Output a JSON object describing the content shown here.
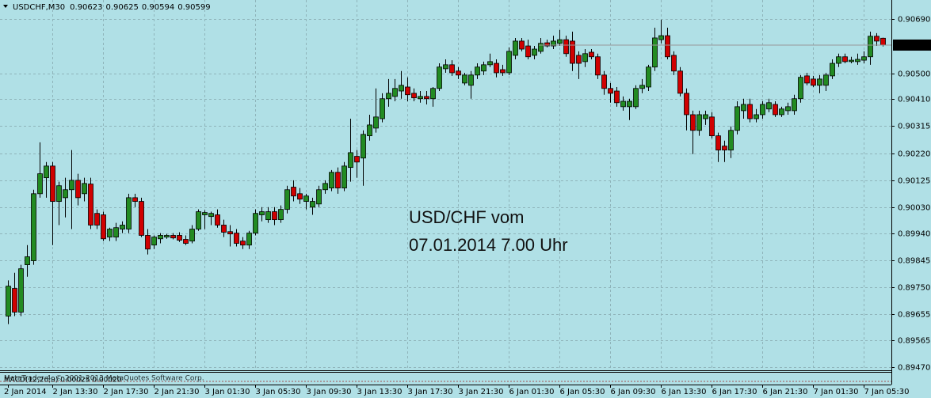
{
  "chart_data": {
    "type": "candlestick",
    "title": "USDCHF,M30",
    "annotations": [
      "USD/CHF vom",
      "07.01.2014 7.00 Uhr"
    ],
    "indicator": "MACD(12,26,9) 0.00025 0.00020",
    "watermark": "MetaTrader 4, © 2001-2013 MetaQuotes Software Corp.",
    "up_color": "#228b22",
    "down_color": "#d00000",
    "grid": true,
    "ylim": [
      0.89459,
      0.90757
    ],
    "yticks": [
      {
        "value": 0.9069,
        "label": "0.90690"
      },
      {
        "value": 0.905,
        "label": "0.90500"
      },
      {
        "value": 0.9041,
        "label": "0.90410"
      },
      0.90315,
      {
        "value": 0.9022,
        "label": "0.90220"
      },
      0.90125,
      {
        "value": 0.9003,
        "label": "0.90030"
      },
      {
        "value": 0.8994,
        "label": "0.89940"
      },
      0.89845,
      {
        "value": 0.8975,
        "label": "0.89750"
      },
      0.89655,
      0.89565,
      {
        "value": 0.8947,
        "label": "0.89470"
      }
    ],
    "categories": [
      "2 Jan 2014",
      null,
      null,
      null,
      null,
      null,
      null,
      "2 Jan 13:30",
      null,
      null,
      null,
      null,
      null,
      null,
      null,
      "2 Jan 17:30",
      null,
      null,
      null,
      null,
      null,
      null,
      null,
      "2 Jan 21:30",
      null,
      null,
      null,
      null,
      null,
      null,
      null,
      "3 Jan 01:30",
      null,
      null,
      null,
      null,
      null,
      null,
      null,
      "3 Jan 05:30",
      null,
      null,
      null,
      null,
      null,
      null,
      null,
      "3 Jan 09:30",
      null,
      null,
      null,
      null,
      null,
      null,
      null,
      "3 Jan 13:30",
      null,
      null,
      null,
      null,
      null,
      null,
      null,
      "3 Jan 17:30",
      null,
      null,
      null,
      null,
      null,
      null,
      null,
      "3 Jan 21:30",
      null,
      null,
      null,
      null,
      null,
      null,
      null,
      "6 Jan 01:30",
      null,
      null,
      null,
      null,
      null,
      null,
      null,
      "6 Jan 05:30",
      null,
      null,
      null,
      null,
      null,
      null,
      null,
      "6 Jan 09:30",
      null,
      null,
      null,
      null,
      null,
      null,
      null,
      "6 Jan 13:30",
      null,
      null,
      null,
      null,
      null,
      null,
      null,
      "6 Jan 17:30",
      null,
      null,
      null,
      null,
      null,
      null,
      null,
      "6 Jan 21:30",
      null,
      null,
      null,
      null,
      null,
      null,
      null,
      "7 Jan 01:30",
      null,
      null,
      null,
      null,
      null,
      null,
      null,
      "7 Jan 05:30",
      null,
      null,
      null
    ],
    "ohlc": [
      [
        0.89649,
        0.89774,
        0.89621,
        0.89754
      ],
      [
        0.89746,
        0.89801,
        0.89649,
        0.89663
      ],
      [
        0.89663,
        0.89829,
        0.89649,
        0.89815
      ],
      [
        0.89829,
        0.89898,
        0.89787,
        0.89857
      ],
      [
        0.89843,
        0.90092,
        0.89829,
        0.90078
      ],
      [
        0.90078,
        0.90258,
        0.90064,
        0.90148
      ],
      [
        0.90134,
        0.90189,
        0.90064,
        0.90175
      ],
      [
        0.90175,
        0.90189,
        0.89898,
        0.90051
      ],
      [
        0.90051,
        0.9012,
        0.89968,
        0.90106
      ],
      [
        0.90064,
        0.90134,
        0.89995,
        0.90092
      ],
      [
        0.90092,
        0.90231,
        0.89954,
        0.90125
      ],
      [
        0.90125,
        0.90148,
        0.90037,
        0.90064
      ],
      [
        0.90078,
        0.90134,
        0.90051,
        0.90114
      ],
      [
        0.90112,
        0.90134,
        0.89954,
        0.89968
      ],
      [
        0.90009,
        0.90023,
        0.89954,
        0.89968
      ],
      [
        0.90004,
        0.90015,
        0.89912,
        0.8992
      ],
      [
        0.89926,
        0.89959,
        0.89912,
        0.89954
      ],
      [
        0.89926,
        0.89976,
        0.89912,
        0.89959
      ],
      [
        0.89954,
        0.89981,
        0.8994,
        0.89968
      ],
      [
        0.89954,
        0.90078,
        0.8994,
        0.90064
      ],
      [
        0.90064,
        0.90078,
        0.90031,
        0.90051
      ],
      [
        0.90051,
        0.90064,
        0.89926,
        0.89932
      ],
      [
        0.89932,
        0.89954,
        0.89865,
        0.89884
      ],
      [
        0.89898,
        0.89932,
        0.89884,
        0.89926
      ],
      [
        0.8992,
        0.8994,
        0.89904,
        0.89932
      ],
      [
        0.89926,
        0.89937,
        0.8992,
        0.89932
      ],
      [
        0.89932,
        0.8994,
        0.89918,
        0.89923
      ],
      [
        0.89932,
        0.89943,
        0.89909,
        0.89915
      ],
      [
        0.89918,
        0.89932,
        0.89898,
        0.89904
      ],
      [
        0.89912,
        0.89968,
        0.89904,
        0.89954
      ],
      [
        0.89954,
        0.90023,
        0.89948,
        0.90015
      ],
      [
        0.90004,
        0.9002,
        0.89954,
        0.90012
      ],
      [
        0.89998,
        0.90015,
        0.89968,
        0.90009
      ],
      [
        0.90004,
        0.90023,
        0.89959,
        0.89968
      ],
      [
        0.89968,
        0.89987,
        0.89926,
        0.89943
      ],
      [
        0.89945,
        0.89968,
        0.89893,
        0.89937
      ],
      [
        0.8994,
        0.89954,
        0.89893,
        0.89904
      ],
      [
        0.89912,
        0.89926,
        0.89884,
        0.89898
      ],
      [
        0.89898,
        0.89948,
        0.89884,
        0.8994
      ],
      [
        0.8994,
        0.90023,
        0.89932,
        0.90009
      ],
      [
        0.90004,
        0.90031,
        0.89981,
        0.90015
      ],
      [
        0.89987,
        0.90031,
        0.89976,
        0.90015
      ],
      [
        0.90015,
        0.90031,
        0.89968,
        0.89987
      ],
      [
        0.89987,
        0.90037,
        0.89976,
        0.90023
      ],
      [
        0.90023,
        0.90106,
        0.90009,
        0.90092
      ],
      [
        0.90101,
        0.90125,
        0.90051,
        0.9007
      ],
      [
        0.90078,
        0.90098,
        0.90042,
        0.90059
      ],
      [
        0.90051,
        0.90078,
        0.90023,
        0.9007
      ],
      [
        0.90031,
        0.90064,
        0.90004,
        0.90051
      ],
      [
        0.90042,
        0.90106,
        0.90031,
        0.90092
      ],
      [
        0.90092,
        0.90125,
        0.90078,
        0.90114
      ],
      [
        0.90098,
        0.90161,
        0.90087,
        0.90153
      ],
      [
        0.90153,
        0.9017,
        0.90078,
        0.90098
      ],
      [
        0.90098,
        0.90189,
        0.90087,
        0.90175
      ],
      [
        0.9017,
        0.90341,
        0.9012,
        0.90222
      ],
      [
        0.90209,
        0.90231,
        0.90134,
        0.90189
      ],
      [
        0.90203,
        0.903,
        0.90106,
        0.90286
      ],
      [
        0.90281,
        0.90355,
        0.90264,
        0.90319
      ],
      [
        0.90308,
        0.90447,
        0.90292,
        0.90347
      ],
      [
        0.90341,
        0.9043,
        0.90328,
        0.90411
      ],
      [
        0.90411,
        0.9048,
        0.90383,
        0.9043
      ],
      [
        0.90419,
        0.9048,
        0.90402,
        0.90447
      ],
      [
        0.90438,
        0.90508,
        0.90411,
        0.90458
      ],
      [
        0.90452,
        0.90486,
        0.90402,
        0.90425
      ],
      [
        0.9043,
        0.90447,
        0.90402,
        0.90414
      ],
      [
        0.90411,
        0.90438,
        0.90397,
        0.90419
      ],
      [
        0.90419,
        0.90438,
        0.90391,
        0.90411
      ],
      [
        0.90411,
        0.90452,
        0.90383,
        0.90447
      ],
      [
        0.90447,
        0.90535,
        0.90438,
        0.90522
      ],
      [
        0.90516,
        0.90549,
        0.90502,
        0.9053
      ],
      [
        0.9053,
        0.90546,
        0.90491,
        0.90502
      ],
      [
        0.90508,
        0.90522,
        0.9048,
        0.90494
      ],
      [
        0.90466,
        0.90502,
        0.90458,
        0.90494
      ],
      [
        0.90458,
        0.90508,
        0.90411,
        0.90494
      ],
      [
        0.90494,
        0.90535,
        0.9048,
        0.90522
      ],
      [
        0.90508,
        0.90541,
        0.90494,
        0.9053
      ],
      [
        0.9053,
        0.90569,
        0.90522,
        0.90541
      ],
      [
        0.90535,
        0.90549,
        0.90486,
        0.90502
      ],
      [
        0.90513,
        0.9053,
        0.90491,
        0.90502
      ],
      [
        0.90502,
        0.90591,
        0.90494,
        0.90577
      ],
      [
        0.90563,
        0.90624,
        0.90549,
        0.90613
      ],
      [
        0.90613,
        0.90624,
        0.90577,
        0.90585
      ],
      [
        0.90596,
        0.90618,
        0.90549,
        0.90558
      ],
      [
        0.90563,
        0.90596,
        0.90549,
        0.90585
      ],
      [
        0.90577,
        0.90624,
        0.90569,
        0.90605
      ],
      [
        0.90607,
        0.90618,
        0.90591,
        0.90596
      ],
      [
        0.90596,
        0.90632,
        0.90585,
        0.90613
      ],
      [
        0.90605,
        0.90652,
        0.90596,
        0.90618
      ],
      [
        0.90618,
        0.90632,
        0.90558,
        0.90569
      ],
      [
        0.90613,
        0.90646,
        0.90508,
        0.90535
      ],
      [
        0.90563,
        0.90577,
        0.9048,
        0.90535
      ],
      [
        0.90541,
        0.90585,
        0.90522,
        0.90569
      ],
      [
        0.90574,
        0.90585,
        0.90549,
        0.90558
      ],
      [
        0.90558,
        0.90569,
        0.9048,
        0.90494
      ],
      [
        0.90494,
        0.90508,
        0.90425,
        0.90447
      ],
      [
        0.90447,
        0.90466,
        0.90397,
        0.9043
      ],
      [
        0.90438,
        0.90452,
        0.90383,
        0.90397
      ],
      [
        0.90383,
        0.90419,
        0.90369,
        0.90402
      ],
      [
        0.90383,
        0.90411,
        0.90336,
        0.90402
      ],
      [
        0.90383,
        0.90458,
        0.90375,
        0.90447
      ],
      [
        0.90447,
        0.9048,
        0.9043,
        0.90458
      ],
      [
        0.90452,
        0.9053,
        0.90438,
        0.90522
      ],
      [
        0.90522,
        0.9066,
        0.90508,
        0.90624
      ],
      [
        0.90618,
        0.90688,
        0.90605,
        0.90632
      ],
      [
        0.90632,
        0.9066,
        0.90549,
        0.90558
      ],
      [
        0.90563,
        0.90577,
        0.90494,
        0.90508
      ],
      [
        0.90508,
        0.90522,
        0.90419,
        0.9043
      ],
      [
        0.9043,
        0.90447,
        0.903,
        0.90355
      ],
      [
        0.90355,
        0.90369,
        0.90217,
        0.903
      ],
      [
        0.903,
        0.90369,
        0.90281,
        0.90355
      ],
      [
        0.90341,
        0.90369,
        0.90319,
        0.90355
      ],
      [
        0.90347,
        0.90364,
        0.90272,
        0.90281
      ],
      [
        0.90281,
        0.90292,
        0.90189,
        0.90231
      ],
      [
        0.90245,
        0.90264,
        0.90189,
        0.90231
      ],
      [
        0.90231,
        0.90314,
        0.90203,
        0.903
      ],
      [
        0.903,
        0.90402,
        0.90286,
        0.90383
      ],
      [
        0.90369,
        0.90411,
        0.90341,
        0.90391
      ],
      [
        0.90391,
        0.90411,
        0.90328,
        0.90341
      ],
      [
        0.90341,
        0.90375,
        0.90328,
        0.90355
      ],
      [
        0.90355,
        0.90402,
        0.90341,
        0.90391
      ],
      [
        0.90375,
        0.90411,
        0.90364,
        0.90397
      ],
      [
        0.90391,
        0.90402,
        0.90347,
        0.90355
      ],
      [
        0.90355,
        0.90383,
        0.90347,
        0.90375
      ],
      [
        0.90369,
        0.90397,
        0.90355,
        0.90383
      ],
      [
        0.90369,
        0.90425,
        0.90355,
        0.90411
      ],
      [
        0.90411,
        0.90494,
        0.90397,
        0.90486
      ],
      [
        0.90491,
        0.90502,
        0.90458,
        0.90466
      ],
      [
        0.9048,
        0.90491,
        0.90452,
        0.90458
      ],
      [
        0.90458,
        0.90494,
        0.9043,
        0.9048
      ],
      [
        0.90458,
        0.90502,
        0.90438,
        0.90494
      ],
      [
        0.90491,
        0.90549,
        0.9048,
        0.90535
      ],
      [
        0.90535,
        0.90569,
        0.90522,
        0.90558
      ],
      [
        0.90558,
        0.90569,
        0.90535,
        0.90541
      ],
      [
        0.90541,
        0.90558,
        0.90535,
        0.90546
      ],
      [
        0.90541,
        0.90569,
        0.9053,
        0.90549
      ],
      [
        0.90546,
        0.90577,
        0.90535,
        0.90558
      ],
      [
        0.90558,
        0.90646,
        0.9053,
        0.9063
      ],
      [
        0.9063,
        0.90641,
        0.90596,
        0.90613
      ],
      [
        0.90623,
        0.90625,
        0.90594,
        0.90599
      ]
    ]
  }
}
